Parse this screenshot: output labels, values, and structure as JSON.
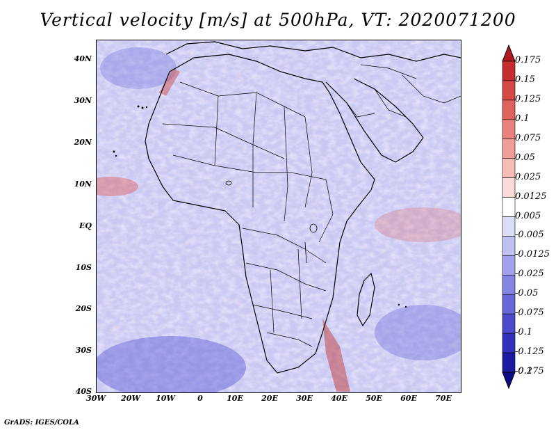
{
  "title": "Vertical velocity [m/s] at 500hPa, VT: 2020071200",
  "lat_labels": [
    "40N",
    "30N",
    "20N",
    "10N",
    "EQ",
    "10S",
    "20S",
    "30S",
    "40S"
  ],
  "lon_labels": [
    "30W",
    "20W",
    "10W",
    "0",
    "10E",
    "20E",
    "30E",
    "40E",
    "50E",
    "60E",
    "70E"
  ],
  "colorbar": {
    "labels": [
      "0.175",
      "0.15",
      "0.125",
      "0.1",
      "0.075",
      "0.05",
      "0.025",
      "0.0125",
      "0.005",
      "-0.005",
      "-0.0125",
      "-0.025",
      "-0.05",
      "-0.075",
      "-0.1",
      "-0.125",
      "-0.175",
      "-0.2"
    ],
    "colors": [
      "#b0191e",
      "#c62d30",
      "#d44846",
      "#e0625f",
      "#e8807c",
      "#f09e9a",
      "#f7bcb8",
      "#fbdad7",
      "#ffffff",
      "#dcdcf6",
      "#c0c0f0",
      "#a2a2ea",
      "#8585e2",
      "#6868d8",
      "#4b4bcc",
      "#3131bb",
      "#1b1ba2",
      "#0d0b86"
    ]
  },
  "credit": "GrADS: IGES/COLA"
}
